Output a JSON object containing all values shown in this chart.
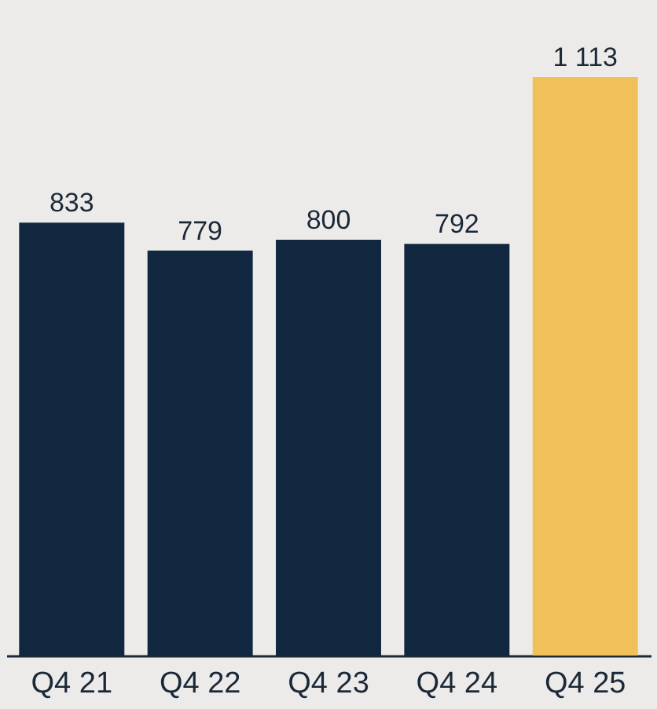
{
  "chart_data": {
    "type": "bar",
    "categories": [
      "Q4 21",
      "Q4 22",
      "Q4 23",
      "Q4 24",
      "Q4 25"
    ],
    "values": [
      833,
      779,
      800,
      792,
      1113
    ],
    "value_labels": [
      "833",
      "779",
      "800",
      "792",
      "1 113"
    ],
    "colors": [
      "#10273f",
      "#10273f",
      "#10273f",
      "#10273f",
      "#f0c05a"
    ],
    "grid": false
  }
}
